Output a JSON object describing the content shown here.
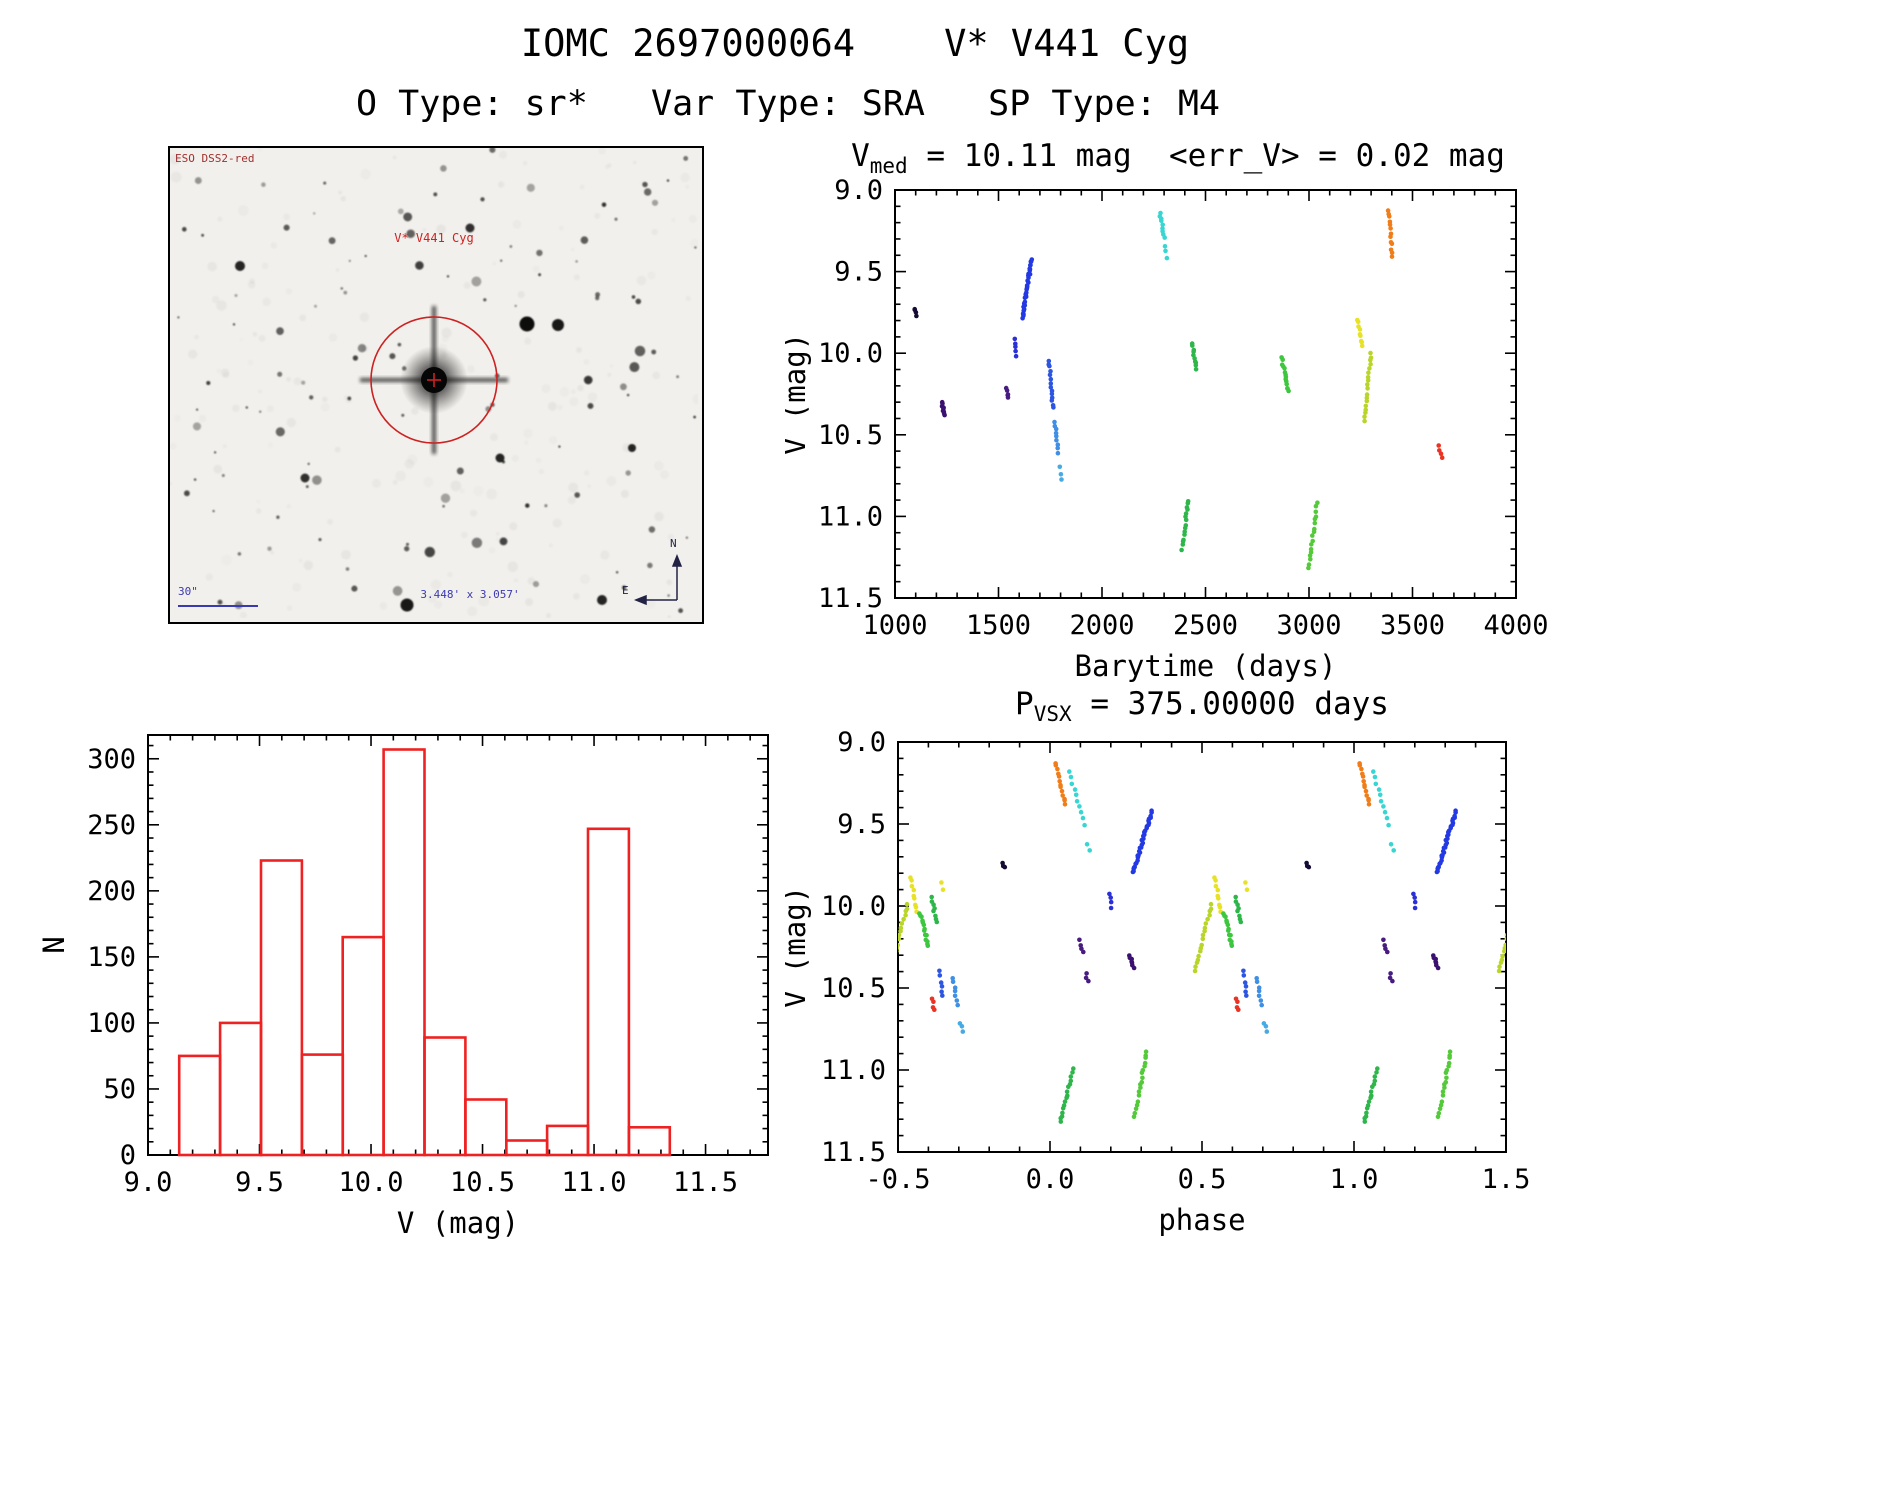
{
  "header": {
    "title": "IOMC 2697000064    V* V441 Cyg",
    "subtitle": "O Type: sr*   Var Type: SRA   SP Type: M4"
  },
  "finder": {
    "survey": "ESO DSS2-red",
    "target": "V* V441 Cyg",
    "scale_bar": "30\"",
    "fov": "3.448' x 3.057'",
    "compass_n": "N",
    "compass_e": "E"
  },
  "chart_data": [
    {
      "id": "light_curve",
      "type": "scatter",
      "title": "V_med = 10.11 mag  <err_V> = 0.02 mag",
      "title_parts": {
        "p1": "V",
        "sub": "med",
        "p2": " = 10.11 mag  <err_V> = 0.02 mag"
      },
      "xlabel": "Barytime (days)",
      "ylabel": "V (mag)",
      "xlim": [
        1000,
        4000
      ],
      "ylim": [
        9.0,
        11.5
      ],
      "y_inverted": true,
      "xticks": [
        1000,
        1500,
        2000,
        2500,
        3000,
        3500,
        4000
      ],
      "xtick_labels": [
        "1000",
        "1500",
        "2000",
        "2500",
        "3000",
        "3500",
        "4000"
      ],
      "yticks": [
        9.0,
        9.5,
        10.0,
        10.5,
        11.0,
        11.5
      ],
      "ytick_labels": [
        "9.0",
        "9.5",
        "10.0",
        "10.5",
        "11.0",
        "11.5"
      ],
      "clusters": [
        {
          "c": "#150a33",
          "x0": 1095,
          "y0": 9.73,
          "x1": 1102,
          "y1": 9.77,
          "n": 4
        },
        {
          "c": "#3b1070",
          "x0": 1226,
          "y0": 10.3,
          "x1": 1240,
          "y1": 10.38,
          "n": 9
        },
        {
          "c": "#471b80",
          "x0": 1538,
          "y0": 10.21,
          "x1": 1548,
          "y1": 10.28,
          "n": 5
        },
        {
          "c": "#2b2fd6",
          "x0": 1578,
          "y0": 9.92,
          "x1": 1586,
          "y1": 10.01,
          "n": 5
        },
        {
          "c": "#2339e2",
          "x0": 1616,
          "y0": 9.79,
          "x1": 1660,
          "y1": 9.42,
          "n": 34
        },
        {
          "c": "#2c55e2",
          "x0": 1744,
          "y0": 10.04,
          "x1": 1762,
          "y1": 10.34,
          "n": 14
        },
        {
          "c": "#3f8fe4",
          "x0": 1772,
          "y0": 10.42,
          "x1": 1790,
          "y1": 10.61,
          "n": 9
        },
        {
          "c": "#47aae2",
          "x0": 1798,
          "y0": 10.7,
          "x1": 1806,
          "y1": 10.77,
          "n": 3
        },
        {
          "c": "#38d6d2",
          "x0": 2280,
          "y0": 9.14,
          "x1": 2300,
          "y1": 9.29,
          "n": 9
        },
        {
          "c": "#38d6d2",
          "x0": 2304,
          "y0": 9.35,
          "x1": 2312,
          "y1": 9.41,
          "n": 3
        },
        {
          "c": "#2fb64b",
          "x0": 2438,
          "y0": 9.94,
          "x1": 2454,
          "y1": 10.1,
          "n": 10
        },
        {
          "c": "#2fb64b",
          "x0": 2386,
          "y0": 11.2,
          "x1": 2418,
          "y1": 10.9,
          "n": 15
        },
        {
          "c": "#3fc63f",
          "x0": 2868,
          "y0": 10.03,
          "x1": 2902,
          "y1": 10.24,
          "n": 14
        },
        {
          "c": "#54ca3a",
          "x0": 3000,
          "y0": 11.32,
          "x1": 3038,
          "y1": 10.92,
          "n": 17
        },
        {
          "c": "#e8e226",
          "x0": 3236,
          "y0": 9.79,
          "x1": 3258,
          "y1": 9.96,
          "n": 9
        },
        {
          "c": "#b9d52a",
          "x0": 3266,
          "y0": 10.42,
          "x1": 3300,
          "y1": 10.0,
          "n": 18
        },
        {
          "c": "#f07d19",
          "x0": 3384,
          "y0": 9.12,
          "x1": 3402,
          "y1": 9.41,
          "n": 13
        },
        {
          "c": "#ea3322",
          "x0": 3628,
          "y0": 10.57,
          "x1": 3640,
          "y1": 10.64,
          "n": 4
        }
      ]
    },
    {
      "id": "histogram",
      "type": "bar",
      "xlabel": "V (mag)",
      "ylabel": "N",
      "xlim": [
        9.0,
        11.78
      ],
      "ylim": [
        0,
        318
      ],
      "xticks": [
        9.0,
        9.5,
        10.0,
        10.5,
        11.0,
        11.5
      ],
      "xtick_labels": [
        "9.0",
        "9.5",
        "10.0",
        "10.5",
        "11.0",
        "11.5"
      ],
      "yticks": [
        0,
        50,
        100,
        150,
        200,
        250,
        300
      ],
      "ytick_labels": [
        "0",
        "50",
        "100",
        "150",
        "200",
        "250",
        "300"
      ],
      "bar_color": "#ee2222",
      "bin_start": 9.14,
      "bin_width": 0.1833,
      "values": [
        75,
        100,
        223,
        76,
        165,
        307,
        89,
        42,
        11,
        22,
        247,
        21
      ]
    },
    {
      "id": "phase_plot",
      "type": "scatter",
      "title": "P_VSX = 375.00000 days",
      "title_parts": {
        "p1": "P",
        "sub": "VSX",
        "p2": " = 375.00000 days"
      },
      "xlabel": "phase",
      "ylabel": "V (mag)",
      "xlim": [
        -0.5,
        1.5
      ],
      "ylim": [
        9.0,
        11.5
      ],
      "y_inverted": true,
      "phase_repeat": true,
      "xticks": [
        -0.5,
        0.0,
        0.5,
        1.0,
        1.5
      ],
      "xtick_labels": [
        "-0.5",
        "0.0",
        "0.5",
        "1.0",
        "1.5"
      ],
      "yticks": [
        9.0,
        9.5,
        10.0,
        10.5,
        11.0,
        11.5
      ],
      "ytick_labels": [
        "9.0",
        "9.5",
        "10.0",
        "10.5",
        "11.0",
        "11.5"
      ],
      "clusters": [
        {
          "c": "#f07d19",
          "x0": 0.018,
          "y0": 9.13,
          "x1": 0.05,
          "y1": 9.38,
          "n": 13
        },
        {
          "c": "#38d6d2",
          "x0": 0.062,
          "y0": 9.18,
          "x1": 0.115,
          "y1": 9.5,
          "n": 10
        },
        {
          "c": "#38d6d2",
          "x0": 0.123,
          "y0": 9.62,
          "x1": 0.13,
          "y1": 9.66,
          "n": 2
        },
        {
          "c": "#2339e2",
          "x0": 0.272,
          "y0": 9.8,
          "x1": 0.335,
          "y1": 9.42,
          "n": 34
        },
        {
          "c": "#2b2fd6",
          "x0": 0.195,
          "y0": 9.93,
          "x1": 0.202,
          "y1": 10.01,
          "n": 4
        },
        {
          "c": "#150a33",
          "x0": 0.845,
          "y0": 9.73,
          "x1": 0.852,
          "y1": 9.77,
          "n": 3
        },
        {
          "c": "#3b1070",
          "x0": 0.262,
          "y0": 10.3,
          "x1": 0.276,
          "y1": 10.38,
          "n": 7
        },
        {
          "c": "#471b80",
          "x0": 0.098,
          "y0": 10.21,
          "x1": 0.108,
          "y1": 10.28,
          "n": 4
        },
        {
          "c": "#471b80",
          "x0": 0.118,
          "y0": 10.41,
          "x1": 0.125,
          "y1": 10.46,
          "n": 3
        },
        {
          "c": "#2c55e2",
          "x0": 0.636,
          "y0": 10.4,
          "x1": 0.648,
          "y1": 10.55,
          "n": 6
        },
        {
          "c": "#3f8fe4",
          "x0": 0.682,
          "y0": 10.44,
          "x1": 0.695,
          "y1": 10.6,
          "n": 7
        },
        {
          "c": "#47aae2",
          "x0": 0.705,
          "y0": 10.71,
          "x1": 0.712,
          "y1": 10.77,
          "n": 3
        },
        {
          "c": "#ea3322",
          "x0": 0.612,
          "y0": 10.57,
          "x1": 0.62,
          "y1": 10.63,
          "n": 4
        },
        {
          "c": "#e8e226",
          "x0": 0.645,
          "y0": 9.86,
          "x1": 0.65,
          "y1": 9.9,
          "n": 2
        },
        {
          "c": "#e8e226",
          "x0": 0.543,
          "y0": 9.82,
          "x1": 0.562,
          "y1": 10.04,
          "n": 9
        },
        {
          "c": "#b9d52a",
          "x0": 0.475,
          "y0": 10.4,
          "x1": 0.532,
          "y1": 9.99,
          "n": 18
        },
        {
          "c": "#3fc63f",
          "x0": 0.572,
          "y0": 10.04,
          "x1": 0.6,
          "y1": 10.25,
          "n": 14
        },
        {
          "c": "#2fb64b",
          "x0": 0.612,
          "y0": 9.95,
          "x1": 0.625,
          "y1": 10.1,
          "n": 8
        },
        {
          "c": "#2fb64b",
          "x0": 0.035,
          "y0": 11.32,
          "x1": 0.075,
          "y1": 11.0,
          "n": 16
        },
        {
          "c": "#54ca3a",
          "x0": 0.278,
          "y0": 11.28,
          "x1": 0.318,
          "y1": 10.88,
          "n": 18
        }
      ]
    }
  ]
}
